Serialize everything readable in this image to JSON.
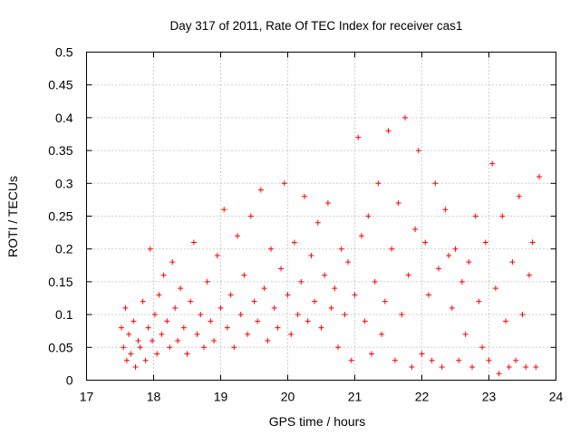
{
  "chart_data": {
    "type": "scatter",
    "title": "Day 317 of 2011, Rate Of TEC Index for receiver cas1",
    "xlabel": "GPS time / hours",
    "ylabel": "ROTI / TECUs",
    "xlim": [
      17,
      24
    ],
    "ylim": [
      0,
      0.5
    ],
    "xticks": [
      "17",
      "18",
      "19",
      "20",
      "21",
      "22",
      "23",
      "24"
    ],
    "yticks": [
      "0",
      "0.05",
      "0.1",
      "0.15",
      "0.2",
      "0.25",
      "0.3",
      "0.35",
      "0.4",
      "0.45",
      "0.5"
    ],
    "grid": true,
    "marker": "+",
    "color": "#ff0000",
    "series": [
      {
        "x": [
          17.52,
          17.55,
          17.58,
          17.6,
          17.63,
          17.66,
          17.7,
          17.73,
          17.77,
          17.8,
          17.84,
          17.88,
          17.92,
          17.95,
          17.98,
          18.02,
          18.05,
          18.08,
          18.12,
          18.15,
          18.2,
          18.24,
          18.28,
          18.32,
          18.36,
          18.4,
          18.45,
          18.5,
          18.55,
          18.6,
          18.65,
          18.7,
          18.75,
          18.8,
          18.85,
          18.9,
          18.95,
          19.0,
          19.05,
          19.1,
          19.15,
          19.2,
          19.25,
          19.3,
          19.35,
          19.4,
          19.45,
          19.5,
          19.55,
          19.6,
          19.65,
          19.7,
          19.75,
          19.8,
          19.85,
          19.9,
          19.95,
          20.0,
          20.05,
          20.1,
          20.15,
          20.2,
          20.25,
          20.3,
          20.35,
          20.4,
          20.45,
          20.5,
          20.55,
          20.6,
          20.65,
          20.7,
          20.75,
          20.8,
          20.85,
          20.9,
          20.95,
          21.0,
          21.05,
          21.1,
          21.15,
          21.2,
          21.25,
          21.3,
          21.35,
          21.4,
          21.45,
          21.5,
          21.55,
          21.6,
          21.65,
          21.7,
          21.75,
          21.8,
          21.85,
          21.9,
          21.95,
          22.0,
          22.05,
          22.1,
          22.15,
          22.2,
          22.25,
          22.3,
          22.35,
          22.4,
          22.45,
          22.5,
          22.55,
          22.6,
          22.65,
          22.7,
          22.75,
          22.8,
          22.85,
          22.9,
          22.95,
          23.0,
          23.05,
          23.1,
          23.15,
          23.2,
          23.25,
          23.3,
          23.35,
          23.4,
          23.45,
          23.5,
          23.55,
          23.6,
          23.65,
          23.7,
          23.75
        ],
        "y": [
          0.08,
          0.05,
          0.11,
          0.03,
          0.07,
          0.04,
          0.09,
          0.02,
          0.06,
          0.05,
          0.12,
          0.03,
          0.08,
          0.2,
          0.06,
          0.1,
          0.04,
          0.13,
          0.07,
          0.16,
          0.09,
          0.05,
          0.18,
          0.11,
          0.06,
          0.14,
          0.08,
          0.04,
          0.12,
          0.21,
          0.07,
          0.1,
          0.05,
          0.15,
          0.09,
          0.06,
          0.19,
          0.11,
          0.26,
          0.08,
          0.13,
          0.05,
          0.22,
          0.1,
          0.16,
          0.07,
          0.25,
          0.12,
          0.09,
          0.29,
          0.14,
          0.06,
          0.2,
          0.11,
          0.08,
          0.17,
          0.3,
          0.13,
          0.07,
          0.21,
          0.1,
          0.15,
          0.28,
          0.09,
          0.19,
          0.12,
          0.24,
          0.08,
          0.16,
          0.27,
          0.11,
          0.14,
          0.05,
          0.2,
          0.1,
          0.18,
          0.03,
          0.13,
          0.37,
          0.22,
          0.09,
          0.25,
          0.04,
          0.15,
          0.3,
          0.07,
          0.12,
          0.38,
          0.2,
          0.03,
          0.27,
          0.1,
          0.4,
          0.16,
          0.02,
          0.23,
          0.35,
          0.04,
          0.21,
          0.13,
          0.03,
          0.3,
          0.17,
          0.02,
          0.26,
          0.19,
          0.11,
          0.2,
          0.03,
          0.15,
          0.07,
          0.18,
          0.02,
          0.25,
          0.12,
          0.05,
          0.21,
          0.03,
          0.33,
          0.14,
          0.01,
          0.25,
          0.09,
          0.02,
          0.18,
          0.03,
          0.28,
          0.1,
          0.02,
          0.16,
          0.21,
          0.02,
          0.31
        ]
      }
    ]
  }
}
